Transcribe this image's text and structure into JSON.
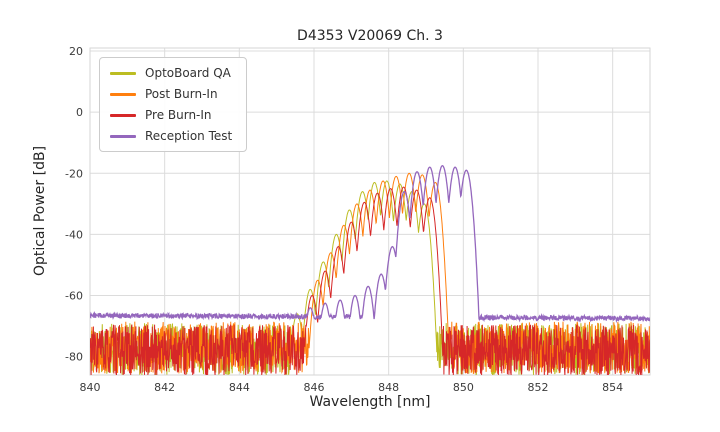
{
  "chart_data": {
    "type": "line",
    "title": "D4353 V20069 Ch. 3",
    "xlabel": "Wavelength [nm]",
    "ylabel": "Optical Power [dB]",
    "xlim": [
      840,
      855
    ],
    "ylim": [
      -86,
      21
    ],
    "x_ticks": [
      840,
      842,
      844,
      846,
      848,
      850,
      852,
      854
    ],
    "y_ticks": [
      20,
      0,
      -20,
      -40,
      -60,
      -80
    ],
    "grid": true,
    "legend_position": "upper left",
    "series": [
      {
        "name": "OptoBoard QA",
        "color": "#bcbd22",
        "noise_floor": [
          [
            840,
            -77.5
          ],
          [
            855,
            -77.5
          ]
        ],
        "noise_spread": 8.5,
        "seed": 11,
        "mode_sharpness": 420,
        "peaks": [
          [
            845.55,
            -66
          ],
          [
            845.9,
            -58
          ],
          [
            846.25,
            -49
          ],
          [
            846.6,
            -40
          ],
          [
            846.95,
            -32
          ],
          [
            847.3,
            -26
          ],
          [
            847.62,
            -23
          ],
          [
            847.95,
            -22.5
          ],
          [
            848.3,
            -23.5
          ],
          [
            848.62,
            -26
          ],
          [
            848.95,
            -30
          ]
        ]
      },
      {
        "name": "Post Burn-In",
        "color": "#ff7f0e",
        "noise_floor": [
          [
            840,
            -77
          ],
          [
            855,
            -77
          ]
        ],
        "noise_spread": 8.5,
        "seed": 22,
        "mode_sharpness": 420,
        "peaks": [
          [
            846.1,
            -55
          ],
          [
            846.45,
            -46
          ],
          [
            846.8,
            -37
          ],
          [
            847.15,
            -30
          ],
          [
            847.5,
            -25.5
          ],
          [
            847.85,
            -22.5
          ],
          [
            848.2,
            -21
          ],
          [
            848.55,
            -20
          ],
          [
            848.9,
            -20.5
          ],
          [
            849.25,
            -23
          ]
        ]
      },
      {
        "name": "Pre Burn-In",
        "color": "#d62728",
        "noise_floor": [
          [
            840,
            -78
          ],
          [
            855,
            -78
          ]
        ],
        "noise_spread": 8.5,
        "seed": 33,
        "mode_sharpness": 420,
        "peaks": [
          [
            845.95,
            -60
          ],
          [
            846.3,
            -52
          ],
          [
            846.65,
            -44
          ],
          [
            847.0,
            -36
          ],
          [
            847.35,
            -29.5
          ],
          [
            847.7,
            -26.5
          ],
          [
            848.05,
            -25
          ],
          [
            848.4,
            -24.5
          ],
          [
            848.75,
            -25.5
          ],
          [
            849.1,
            -28
          ]
        ]
      },
      {
        "name": "Reception Test",
        "color": "#9467bd",
        "noise_floor": [
          [
            840,
            -66.5
          ],
          [
            855,
            -67.5
          ]
        ],
        "noise_spread": 0.8,
        "seed": 44,
        "mode_sharpness": 420,
        "peaks": [
          [
            845.9,
            -64
          ],
          [
            846.3,
            -62.5
          ],
          [
            846.7,
            -61.5
          ],
          [
            847.1,
            -60
          ],
          [
            847.45,
            -57
          ],
          [
            847.8,
            -53
          ],
          [
            848.1,
            -44
          ],
          [
            848.42,
            -26
          ],
          [
            848.76,
            -19.5
          ],
          [
            849.1,
            -18
          ],
          [
            849.44,
            -17.5
          ],
          [
            849.78,
            -18
          ],
          [
            850.08,
            -19
          ]
        ]
      }
    ]
  }
}
